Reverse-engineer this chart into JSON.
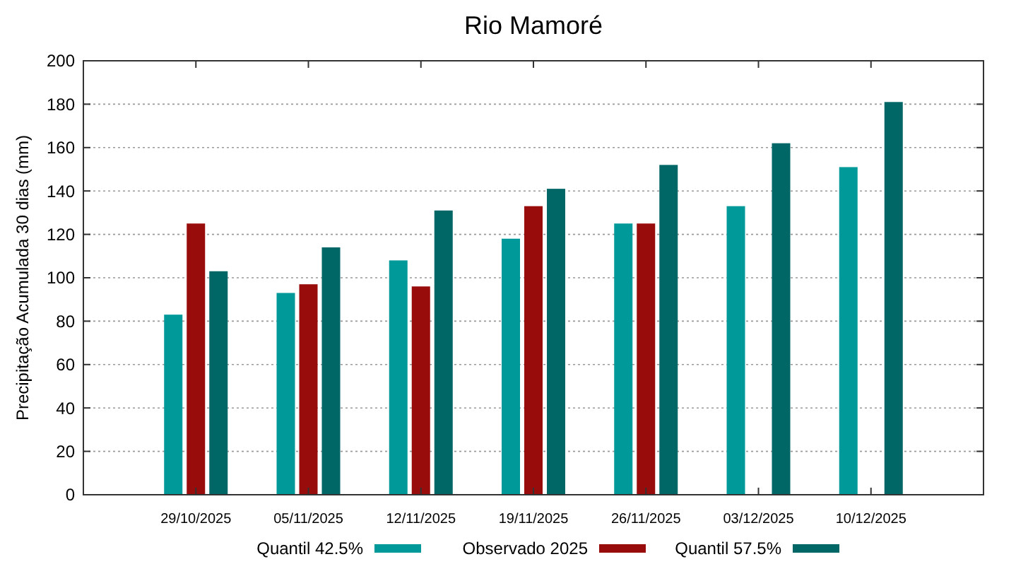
{
  "chart_data": {
    "type": "bar",
    "title": "Rio Mamoré",
    "ylabel": "Precipitação Acumulada 30 dias (mm)",
    "categories": [
      "29/10/2025",
      "05/11/2025",
      "12/11/2025",
      "19/11/2025",
      "26/11/2025",
      "03/12/2025",
      "10/12/2025"
    ],
    "series": [
      {
        "name": "Quantil 42.5%",
        "color": "#009999",
        "values": [
          83,
          93,
          108,
          118,
          125,
          133,
          151
        ]
      },
      {
        "name": "Observado 2025",
        "color": "#990c0c",
        "values": [
          125,
          97,
          96,
          133,
          125,
          null,
          null
        ]
      },
      {
        "name": "Quantil 57.5%",
        "color": "#006666",
        "values": [
          103,
          114,
          131,
          141,
          152,
          162,
          181
        ]
      }
    ],
    "ylim": [
      0,
      200
    ],
    "yticks": [
      0,
      20,
      40,
      60,
      80,
      100,
      120,
      140,
      160,
      180,
      200
    ],
    "grid": "y",
    "legend": "bottom"
  }
}
